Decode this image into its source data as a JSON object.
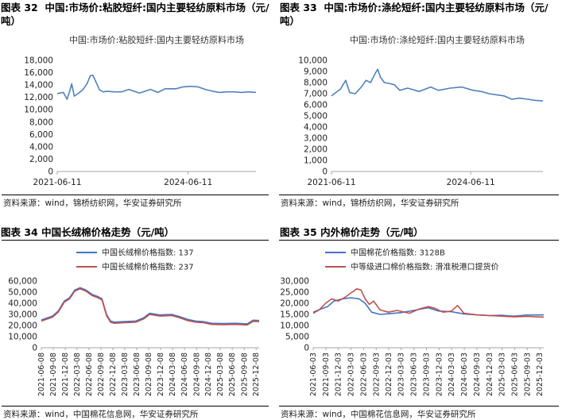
{
  "panels": [
    {
      "heading": "图表 32  中国:市场价:粘胶短纤:国内主要轻纺原料市场（元/吨）",
      "source": "资料来源：wind，锦桥纺织网，华安证券研究所"
    },
    {
      "heading": "图表 33  中国:市场价:涤纶短纤:国内主要轻纺原料市场（元/吨）",
      "source": "资料来源：wind，锦桥纺织网，华安证券研究所"
    },
    {
      "heading": "图表 34 中国长绒棉价格走势（元/吨）",
      "source": "资料来源：wind，中国棉花信息网，华安证券研究所"
    },
    {
      "heading": "图表 35 内外棉价走势（元/吨）",
      "source": "资料来源：wind，中国棉花信息网，华安证券研究所"
    }
  ],
  "chart_data": [
    {
      "type": "line",
      "title": "中国:市场价:粘胶短纤:国内主要轻纺原料市场",
      "ylim": [
        0,
        18000
      ],
      "yticks": [
        0,
        2000,
        4000,
        6000,
        8000,
        10000,
        12000,
        14000,
        16000,
        18000
      ],
      "yticklabels": [
        "0",
        "2,000",
        "4,000",
        "6,000",
        "8,000",
        "10,000",
        "12,000",
        "14,000",
        "16,000",
        "18,000"
      ],
      "xticklabels": [
        "2021-06-11",
        "2024-06-11"
      ],
      "xtick_dates": [
        "2021-06-11",
        "2024-06-11"
      ],
      "xrange": [
        "2021-06-11",
        "2025-12-31"
      ],
      "legend": "none",
      "series": [
        {
          "color": "#4f81bd",
          "x": [
            "2021-06-11",
            "2021-07-01",
            "2021-08-01",
            "2021-09-01",
            "2021-09-20",
            "2021-10-10",
            "2021-11-01",
            "2021-12-01",
            "2022-01-10",
            "2022-02-15",
            "2022-03-15",
            "2022-04-05",
            "2022-05-01",
            "2022-06-01",
            "2022-07-01",
            "2022-08-01",
            "2022-10-01",
            "2022-12-01",
            "2023-02-01",
            "2023-05-01",
            "2023-08-01",
            "2023-10-01",
            "2023-12-01",
            "2024-03-01",
            "2024-05-01",
            "2024-07-01",
            "2024-09-01",
            "2024-11-01",
            "2025-01-01",
            "2025-03-01",
            "2025-05-01",
            "2025-07-01",
            "2025-09-01",
            "2025-11-01",
            "2025-12-31"
          ],
          "y": [
            12600,
            12700,
            12800,
            11700,
            12800,
            14200,
            12200,
            12600,
            13200,
            14200,
            15500,
            15600,
            14500,
            13200,
            12900,
            13000,
            12900,
            12900,
            13300,
            12700,
            13300,
            12800,
            13400,
            13400,
            13700,
            13800,
            13700,
            13300,
            13000,
            12800,
            12900,
            12900,
            12800,
            12900,
            12800
          ]
        }
      ]
    },
    {
      "type": "line",
      "title": "中国:市场价:涤纶短纤:国内主要轻纺原料市场",
      "ylim": [
        0,
        10000
      ],
      "yticks": [
        0,
        1000,
        2000,
        3000,
        4000,
        5000,
        6000,
        7000,
        8000,
        9000,
        10000
      ],
      "yticklabels": [
        "0",
        "1,000",
        "2,000",
        "3,000",
        "4,000",
        "5,000",
        "6,000",
        "7,000",
        "8,000",
        "9,000",
        "10,000"
      ],
      "xticklabels": [
        "2021-06-11",
        "2024-06-11"
      ],
      "xtick_dates": [
        "2021-06-11",
        "2024-06-11"
      ],
      "xrange": [
        "2021-06-11",
        "2025-12-31"
      ],
      "legend": "none",
      "series": [
        {
          "color": "#4f81bd",
          "x": [
            "2021-06-11",
            "2021-07-15",
            "2021-08-20",
            "2021-10-01",
            "2021-11-01",
            "2021-12-15",
            "2022-02-01",
            "2022-03-10",
            "2022-04-15",
            "2022-05-20",
            "2022-06-10",
            "2022-07-01",
            "2022-08-01",
            "2022-09-15",
            "2022-10-20",
            "2022-12-01",
            "2023-02-01",
            "2023-05-01",
            "2023-08-01",
            "2023-10-01",
            "2024-01-01",
            "2024-04-01",
            "2024-07-01",
            "2024-09-01",
            "2024-11-01",
            "2025-01-01",
            "2025-03-01",
            "2025-05-01",
            "2025-07-01",
            "2025-09-01",
            "2025-11-01",
            "2025-12-31"
          ],
          "y": [
            6800,
            7100,
            7400,
            8200,
            7100,
            7000,
            7600,
            8200,
            8000,
            8800,
            9200,
            8500,
            8000,
            7900,
            7800,
            7300,
            7500,
            7200,
            7600,
            7300,
            7500,
            7600,
            7300,
            7200,
            7000,
            6900,
            6800,
            6500,
            6600,
            6500,
            6400,
            6350
          ]
        }
      ]
    },
    {
      "type": "line",
      "ylim": [
        0,
        60000
      ],
      "yticks": [
        0,
        10000,
        20000,
        30000,
        40000,
        50000,
        60000
      ],
      "yticklabels": [
        "0",
        "10,000",
        "20,000",
        "30,000",
        "40,000",
        "50,000",
        "60,000"
      ],
      "xticklabels": [
        "2021-06-08",
        "2021-09-08",
        "2021-12-08",
        "2022-03-08",
        "2022-06-08",
        "2022-09-08",
        "2022-12-08",
        "2023-03-08",
        "2023-06-08",
        "2023-09-08",
        "2023-12-08",
        "2024-03-08",
        "2024-06-08",
        "2024-09-08",
        "2024-12-08",
        "2025-03-08",
        "2025-06-08",
        "2025-09-08",
        "2025-12-08"
      ],
      "xrange": [
        "2021-06-08",
        "2025-12-31"
      ],
      "legend": "top",
      "series": [
        {
          "name": "中国长绒棉价格指数: 137",
          "color": "#4472c4",
          "x": [
            "2021-06-08",
            "2021-07-15",
            "2021-09-01",
            "2021-10-15",
            "2021-12-01",
            "2022-01-10",
            "2022-02-20",
            "2022-04-01",
            "2022-05-15",
            "2022-07-01",
            "2022-08-15",
            "2022-09-15",
            "2022-10-20",
            "2022-11-20",
            "2022-12-20",
            "2023-03-01",
            "2023-06-01",
            "2023-08-01",
            "2023-09-15",
            "2023-12-01",
            "2024-03-01",
            "2024-05-01",
            "2024-07-01",
            "2024-09-01",
            "2024-11-01",
            "2025-01-01",
            "2025-04-01",
            "2025-07-01",
            "2025-10-01",
            "2025-11-15",
            "2025-12-31"
          ],
          "y": [
            25000,
            26500,
            28500,
            33000,
            42000,
            45000,
            52000,
            54000,
            52000,
            48000,
            46000,
            44000,
            30000,
            24000,
            23000,
            23500,
            24000,
            27000,
            31000,
            29500,
            30000,
            28000,
            25500,
            24000,
            23500,
            22000,
            21800,
            22000,
            21500,
            24800,
            24500
          ]
        },
        {
          "name": "中国长绒棉价格指数: 237",
          "color": "#c0504d",
          "x": [
            "2021-06-08",
            "2021-07-15",
            "2021-09-01",
            "2021-10-15",
            "2021-12-01",
            "2022-01-10",
            "2022-02-20",
            "2022-04-01",
            "2022-05-15",
            "2022-07-01",
            "2022-08-15",
            "2022-09-15",
            "2022-10-20",
            "2022-11-20",
            "2022-12-20",
            "2023-03-01",
            "2023-06-01",
            "2023-08-01",
            "2023-09-15",
            "2023-12-01",
            "2024-03-01",
            "2024-05-01",
            "2024-07-01",
            "2024-09-01",
            "2024-11-01",
            "2025-01-01",
            "2025-04-01",
            "2025-07-01",
            "2025-10-01",
            "2025-11-15",
            "2025-12-31"
          ],
          "y": [
            24000,
            25500,
            27500,
            32000,
            41000,
            44000,
            51000,
            53000,
            51000,
            47000,
            45000,
            43000,
            29000,
            23000,
            22000,
            22500,
            23000,
            26000,
            30000,
            28500,
            29000,
            27000,
            24500,
            23000,
            22500,
            21000,
            20800,
            21000,
            20500,
            23800,
            23500
          ]
        }
      ]
    },
    {
      "type": "line",
      "ylim": [
        0,
        30000
      ],
      "yticks": [
        0,
        5000,
        10000,
        15000,
        20000,
        25000,
        30000
      ],
      "yticklabels": [
        "0",
        "5,000",
        "10,000",
        "15,000",
        "20,000",
        "25,000",
        "30,000"
      ],
      "xticklabels": [
        "2021-06-03",
        "2021-09-03",
        "2021-12-03",
        "2022-03-03",
        "2022-06-03",
        "2022-09-03",
        "2022-12-03",
        "2023-03-03",
        "2023-06-03",
        "2023-09-03",
        "2023-12-03",
        "2024-03-03",
        "2024-06-03",
        "2024-09-03",
        "2024-12-03",
        "2025-03-03",
        "2025-06-03",
        "2025-09-03",
        "2025-12-03"
      ],
      "xrange": [
        "2021-06-03",
        "2025-12-31"
      ],
      "legend": "top",
      "series": [
        {
          "name": "中国棉花价格指数: 3128B",
          "color": "#4472c4",
          "x": [
            "2021-06-03",
            "2021-08-01",
            "2021-09-15",
            "2021-11-01",
            "2022-01-01",
            "2022-03-01",
            "2022-05-01",
            "2022-06-15",
            "2022-08-01",
            "2022-10-01",
            "2022-12-01",
            "2023-03-01",
            "2023-06-01",
            "2023-08-01",
            "2023-09-15",
            "2023-12-01",
            "2024-03-01",
            "2024-06-01",
            "2024-09-01",
            "2024-12-01",
            "2025-03-01",
            "2025-06-01",
            "2025-09-01",
            "2025-12-31"
          ],
          "y": [
            16000,
            17500,
            18500,
            21000,
            22000,
            22500,
            22000,
            20000,
            16000,
            15000,
            15300,
            15800,
            16800,
            17500,
            18000,
            16500,
            16200,
            15200,
            14800,
            14500,
            14600,
            14200,
            14700,
            14800
          ]
        },
        {
          "name": "中等级进口棉价格指数: 滑准税港口提货价",
          "color": "#c0504d",
          "x": [
            "2021-06-03",
            "2021-07-15",
            "2021-09-01",
            "2021-10-15",
            "2021-12-01",
            "2022-01-15",
            "2022-03-01",
            "2022-04-15",
            "2022-05-15",
            "2022-06-15",
            "2022-07-15",
            "2022-08-15",
            "2022-10-01",
            "2022-12-01",
            "2023-02-01",
            "2023-05-01",
            "2023-07-15",
            "2023-09-15",
            "2023-11-01",
            "2024-01-01",
            "2024-03-01",
            "2024-04-15",
            "2024-06-01",
            "2024-09-01",
            "2024-12-01",
            "2025-03-01",
            "2025-06-01",
            "2025-09-01",
            "2025-12-31"
          ],
          "y": [
            15500,
            17000,
            20000,
            22000,
            21000,
            22500,
            24500,
            26500,
            26000,
            22000,
            19500,
            21000,
            17000,
            16000,
            16800,
            15500,
            17500,
            18500,
            17800,
            16000,
            16500,
            19000,
            15500,
            14800,
            14500,
            14200,
            13900,
            14100,
            13800
          ]
        }
      ]
    }
  ]
}
